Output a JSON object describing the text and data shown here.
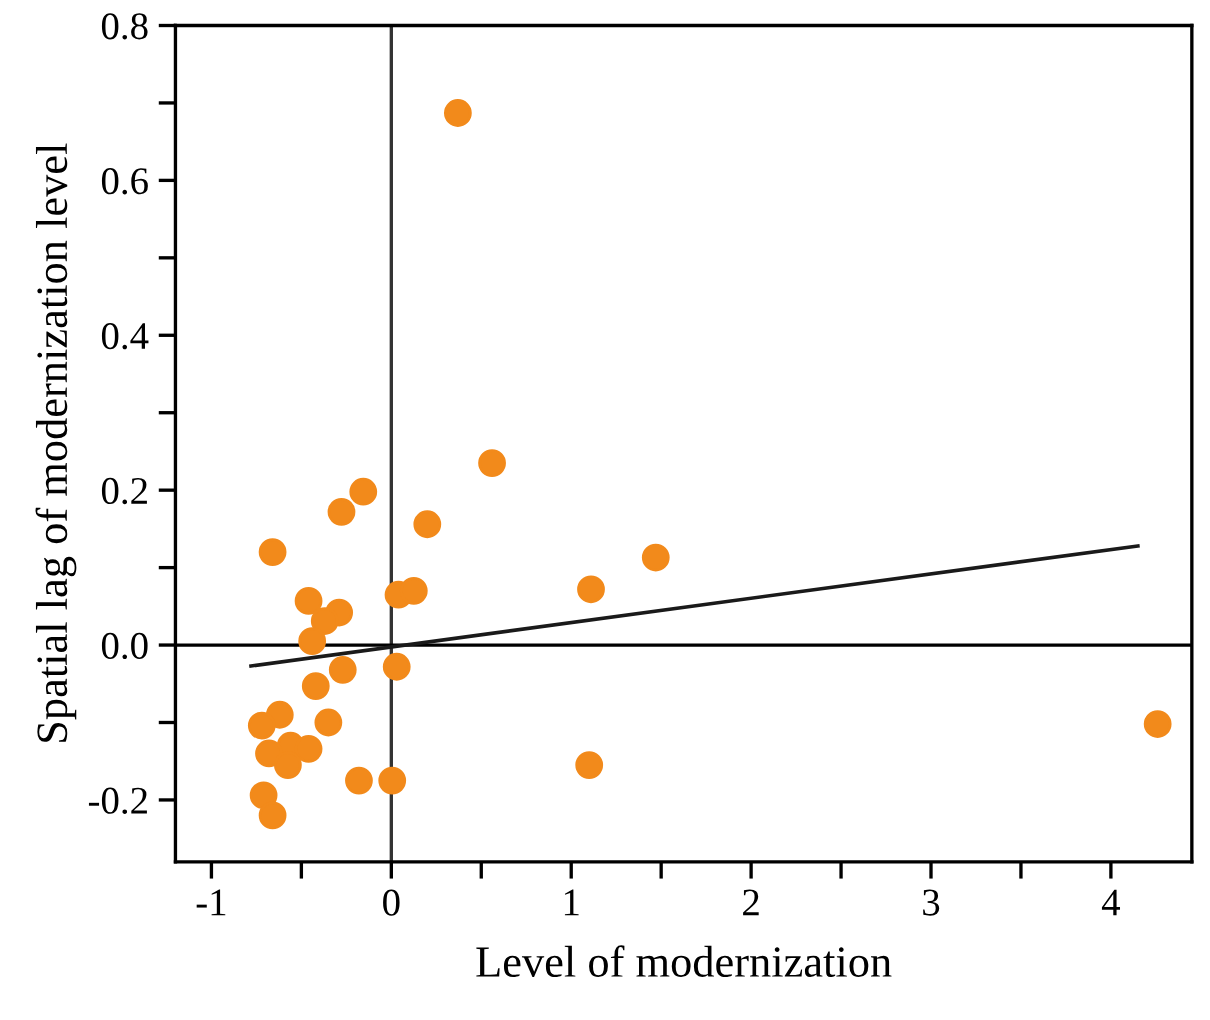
{
  "chart_data": {
    "type": "scatter",
    "xlabel": "Level of modernization",
    "ylabel": "Spatial lag of modernization level",
    "xlim": [
      -1.2,
      4.45
    ],
    "ylim": [
      -0.28,
      0.8
    ],
    "xticks": [
      -1,
      {
        "value": -0.5,
        "label": null
      },
      0,
      {
        "value": 0.5,
        "label": null
      },
      1,
      {
        "value": 1.5,
        "label": null
      },
      2,
      {
        "value": 2.5,
        "label": null
      },
      3,
      {
        "value": 3.5,
        "label": null
      },
      4
    ],
    "yticks": [
      {
        "value": -0.2,
        "label": "-0.2"
      },
      {
        "value": -0.1,
        "label": null
      },
      {
        "value": 0.0,
        "label": "0.0"
      },
      {
        "value": 0.1,
        "label": null
      },
      {
        "value": 0.2,
        "label": "0.2"
      },
      {
        "value": 0.3,
        "label": null
      },
      {
        "value": 0.4,
        "label": "0.4"
      },
      {
        "value": 0.5,
        "label": null
      },
      {
        "value": 0.6,
        "label": "0.6"
      },
      {
        "value": 0.7,
        "label": null
      },
      {
        "value": 0.8,
        "label": "0.8"
      }
    ],
    "grid": false,
    "marker": "circle",
    "ref_lines": [
      {
        "axis": "x",
        "value": 0,
        "color": "#333333"
      },
      {
        "axis": "y",
        "value": 0,
        "color": "#000000"
      }
    ],
    "series": [
      {
        "color": "#f28a1b",
        "x": [
          0.37,
          0.56,
          -0.156,
          -0.277,
          0.2,
          -0.66,
          1.47,
          1.11,
          -0.46,
          -0.29,
          -0.37,
          0.04,
          0.125,
          -0.44,
          -0.27,
          0.03,
          -0.42,
          -0.62,
          -0.72,
          -0.35,
          -0.56,
          -0.46,
          -0.68,
          -0.575,
          1.1,
          -0.18,
          0.005,
          -0.71,
          -0.66,
          4.26
        ],
        "values": [
          0.687,
          0.235,
          0.198,
          0.172,
          0.156,
          0.12,
          0.113,
          0.072,
          0.057,
          0.042,
          0.031,
          0.065,
          0.07,
          0.005,
          -0.032,
          -0.028,
          -0.053,
          -0.09,
          -0.104,
          -0.1,
          -0.13,
          -0.134,
          -0.14,
          -0.155,
          -0.155,
          -0.175,
          -0.175,
          -0.194,
          -0.22,
          -0.102
        ]
      },
      {
        "type": "line",
        "color": "#1a1a1a",
        "marker": "none",
        "x": [
          -0.78,
          4.15
        ],
        "values": [
          -0.027,
          0.128
        ]
      }
    ]
  }
}
